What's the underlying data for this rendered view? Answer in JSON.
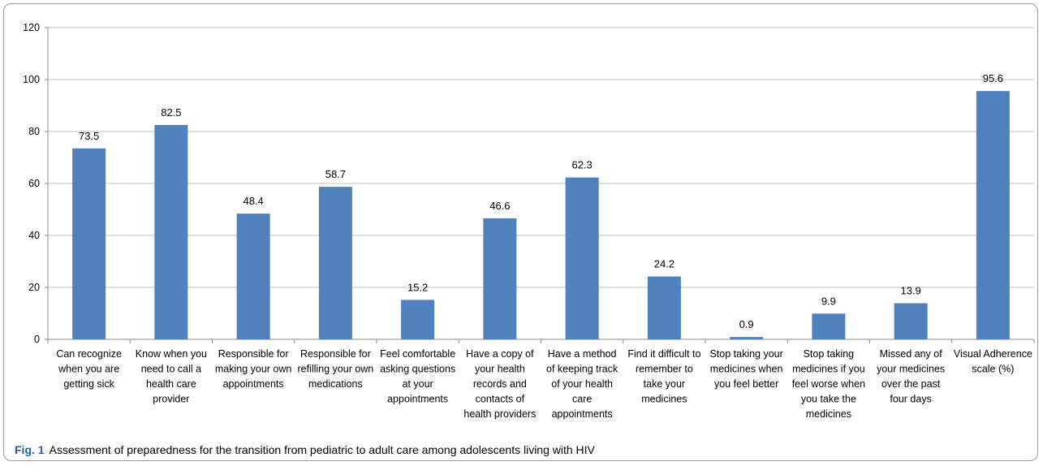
{
  "caption": {
    "label": "Fig. 1",
    "text": "Assessment of preparedness for the transition from pediatric to adult care among adolescents living with HIV"
  },
  "chart_data": {
    "type": "bar",
    "categories": [
      "Can recognize when you are getting sick",
      "Know when you need to call a health care provider",
      "Responsible for making your own appointments",
      "Responsible for refilling your own medications",
      "Feel comfortable asking questions at your appointments",
      "Have a copy of your health records and contacts of health providers",
      "Have a method of keeping track of your health care appointments",
      "Find it difficult to remember to take your medicines",
      "Stop taking your medicines when you feel better",
      "Stop taking medicines if you feel worse when you take the medicines",
      "Missed any of your medicines over the past four days",
      "Visual Adherence scale (%)"
    ],
    "category_lines": [
      [
        "Can recognize",
        "when you are",
        "getting sick"
      ],
      [
        "Know when you",
        "need to call a",
        "health care",
        "provider"
      ],
      [
        "Responsible for",
        "making your own",
        "appointments"
      ],
      [
        "Responsible for",
        "refilling your own",
        "medications"
      ],
      [
        "Feel comfortable",
        "asking questions",
        "at your",
        "appointments"
      ],
      [
        "Have a copy of",
        "your health",
        "records and",
        "contacts of",
        "health providers"
      ],
      [
        "Have a method",
        "of keeping track",
        "of your health",
        "care",
        "appointments"
      ],
      [
        "Find it difficult to",
        "remember to",
        "take your",
        "medicines"
      ],
      [
        "Stop taking your",
        "medicines when",
        "you feel better"
      ],
      [
        "Stop taking",
        "medicines if you",
        "feel worse when",
        "you take the",
        "medicines"
      ],
      [
        "Missed any of",
        "your medicines",
        "over the past",
        "four days"
      ],
      [
        "Visual Adherence",
        "scale (%)"
      ]
    ],
    "values": [
      73.5,
      82.5,
      48.4,
      58.7,
      15.2,
      46.6,
      62.3,
      24.2,
      0.9,
      9.9,
      13.9,
      95.6
    ],
    "value_labels": [
      "73.5",
      "82.5",
      "48.4",
      "58.7",
      "15.2",
      "46.6",
      "62.3",
      "24.2",
      "0.9",
      "9.9",
      "13.9",
      "95.6"
    ],
    "ylim": [
      0,
      120
    ],
    "yticks": [
      0,
      20,
      40,
      60,
      80,
      100,
      120
    ],
    "grid": true,
    "legend": "none",
    "bar_color": "#4f81bd",
    "grid_color": "#bfbfbf",
    "axis_color": "#8c8c8c"
  }
}
